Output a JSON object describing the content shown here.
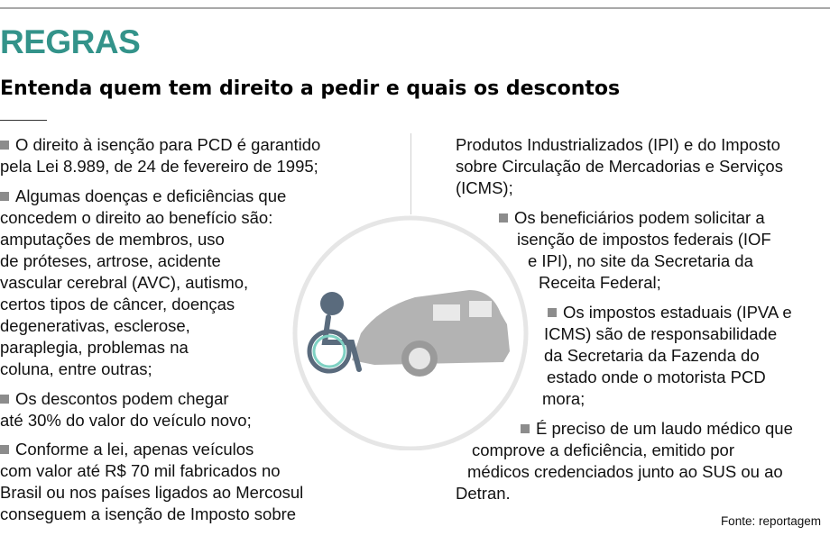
{
  "header": {
    "title": "REGRAS",
    "subtitle": "Entenda quem tem direito a pedir e quais os descontos"
  },
  "illustration": {
    "icon": "wheelchair-user-and-car-icon",
    "colors": {
      "ring": "#e6e6e6",
      "car": "#b3b3b3",
      "person": "#5a6b7d",
      "wheel": "#7fd1c3"
    }
  },
  "colors": {
    "accent": "#33938a",
    "bullet": "#8c8c8c"
  },
  "left_column": [
    {
      "lines": [
        "O direito à isenção para PCD é garantido",
        "pela Lei 8.989, de 24 de fevereiro de 1995;"
      ]
    },
    {
      "lines": [
        "Algumas doenças e deficiências que",
        "concedem o direito ao benefício são:",
        "amputações de membros, uso",
        "de próteses, artrose, acidente",
        "vascular cerebral (AVC), autismo,",
        "certos tipos de câncer, doenças",
        "degenerativas, esclerose,",
        "paraplegia, problemas na",
        "coluna, entre outras;"
      ]
    },
    {
      "lines": [
        "Os descontos podem chegar",
        "até 30% do valor do veículo novo;"
      ]
    },
    {
      "lines": [
        "Conforme a lei, apenas veículos",
        "com valor até R$ 70 mil fabricados no",
        "Brasil ou nos países ligados ao Mercosul",
        "conseguem a isenção de Imposto sobre"
      ]
    }
  ],
  "right_column": [
    {
      "bullet": false,
      "lines": [
        "Produtos Industrializados (IPI) e do Imposto",
        "sobre Circulação de Mercadorias e Serviços",
        "(ICMS);"
      ]
    },
    {
      "bullet": true,
      "lines": [
        "Os beneficiários podem solicitar a",
        "isenção de  impostos federais (IOF",
        "e IPI), no site da Secretaria da",
        "Receita Federal;"
      ]
    },
    {
      "bullet": true,
      "lines": [
        "Os impostos estaduais (IPVA e",
        "ICMS) são de responsabilidade",
        "da Secretaria da Fazenda do",
        "estado onde o motorista PCD",
        "mora;"
      ]
    },
    {
      "bullet": true,
      "lines": [
        "É preciso de um laudo médico que",
        "comprove a deficiência, emitido por",
        "médicos credenciados junto ao SUS ou ao",
        "Detran."
      ]
    }
  ],
  "footer": {
    "source": "Fonte: reportagem"
  }
}
